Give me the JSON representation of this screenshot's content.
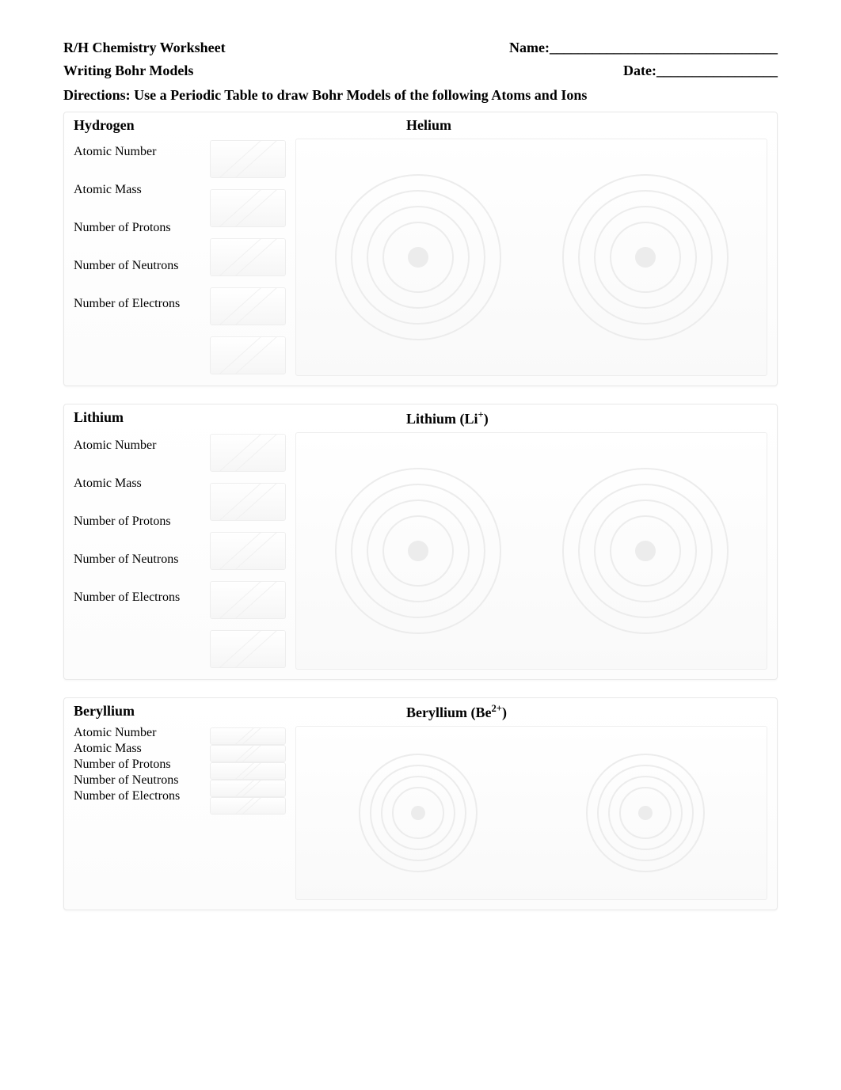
{
  "header": {
    "title": "R/H Chemistry Worksheet",
    "subtitle": "Writing Bohr Models",
    "name_label": "Name:________________________________",
    "date_label": "Date:_________________"
  },
  "directions": "Directions: Use a Periodic Table to draw Bohr Models of the following Atoms and Ions",
  "field_labels": {
    "atomic_number": "Atomic Number",
    "atomic_mass": "Atomic Mass",
    "protons": "Number of Protons",
    "neutrons": "Number of Neutrons",
    "electrons": "Number of Electrons"
  },
  "sections": [
    {
      "left_title": "Hydrogen",
      "right_title": "Helium",
      "compact": false
    },
    {
      "left_title": "Lithium",
      "right_title": "Lithium (Li⁺)",
      "compact": false
    },
    {
      "left_title": "Beryllium",
      "right_title": "Beryllium (Be²⁺)",
      "compact": true
    }
  ],
  "bohr_style": {
    "ring_count": 4,
    "ring_outer_diameter": 210,
    "ring_step": 40,
    "ring_outer_diameter_small": 150,
    "ring_step_small": 28,
    "nucleus_diameter": 26,
    "nucleus_diameter_small": 18,
    "ring_color": "#ececec",
    "nucleus_color": "#ececec"
  }
}
